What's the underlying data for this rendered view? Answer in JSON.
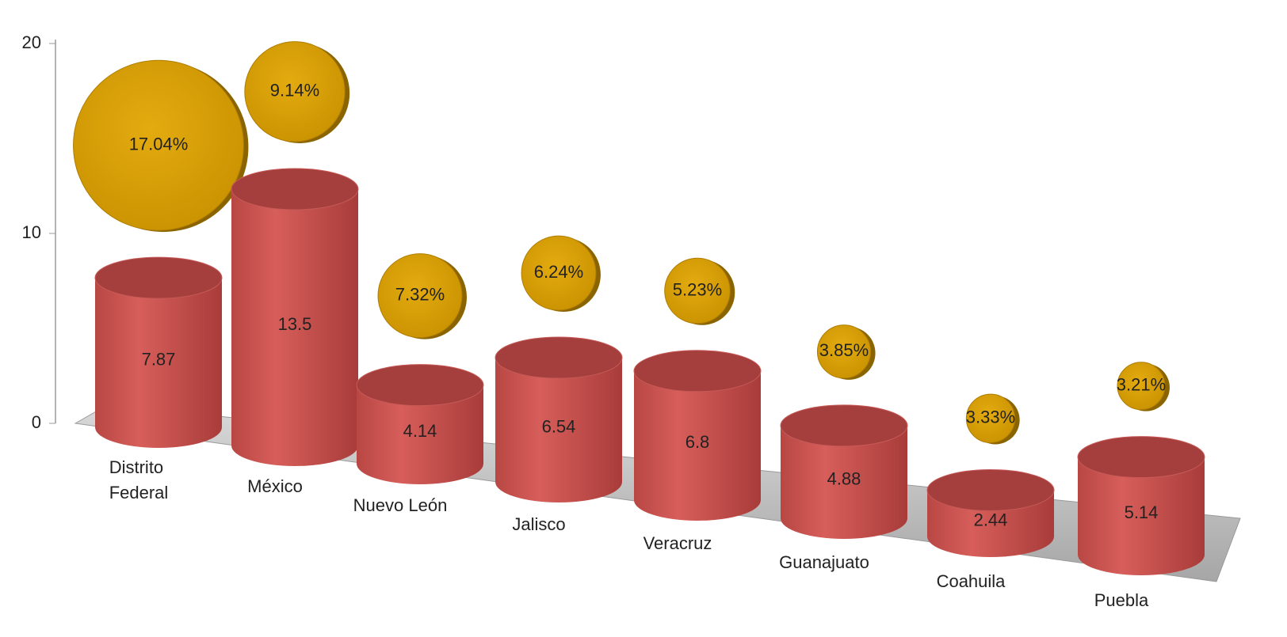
{
  "chart_data": {
    "type": "cylinder",
    "categories": [
      "Distrito Federal",
      "México",
      "Nuevo León",
      "Jalisco",
      "Veracruz",
      "Guanajuato",
      "Coahuila",
      "Puebla"
    ],
    "series": [
      {
        "color": "#c0504d",
        "values": [
          7.87,
          13.5,
          4.14,
          6.54,
          6.8,
          4.88,
          2.44,
          5.14
        ]
      },
      {
        "color": "#d4a017",
        "values": [
          17.04,
          9.14,
          7.32,
          6.24,
          5.23,
          3.85,
          3.33,
          3.21
        ],
        "value_labels": [
          "17.04%",
          "9.14%",
          "7.32%",
          "6.24%",
          "5.23%",
          "3.85%",
          "3.33%",
          "3.21%"
        ]
      }
    ],
    "ylim": [
      0,
      20
    ],
    "yticks": [
      0,
      10,
      20
    ]
  }
}
